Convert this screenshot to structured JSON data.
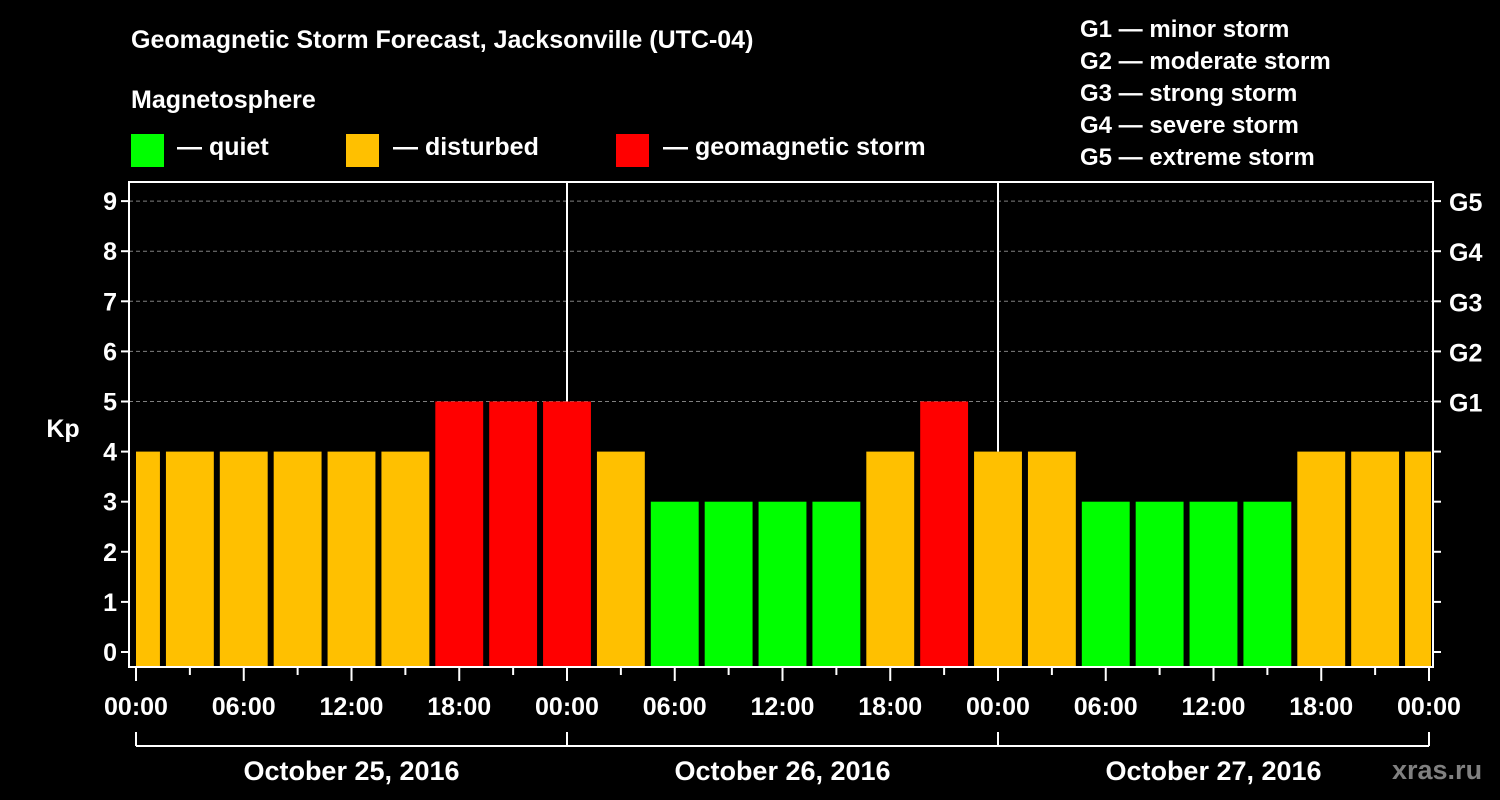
{
  "header": {
    "title": "Geomagnetic Storm Forecast, Jacksonville (UTC-04)",
    "section": "Magnetosphere",
    "legend": [
      {
        "label": "— quiet",
        "color": "#00ff00"
      },
      {
        "label": "— disturbed",
        "color": "#ffc000"
      },
      {
        "label": "— geomagnetic storm",
        "color": "#ff0000"
      }
    ],
    "g_scale": [
      "G1 — minor storm",
      "G2 — moderate storm",
      "G3 — strong storm",
      "G4 — severe storm",
      "G5 — extreme storm"
    ]
  },
  "watermark": "xras.ru",
  "chart_data": {
    "type": "bar",
    "title": "Geomagnetic Storm Forecast, Jacksonville (UTC-04)",
    "ylabel": "Kp",
    "ylim": [
      0,
      9
    ],
    "yticks": [
      "0",
      "1",
      "2",
      "3",
      "4",
      "5",
      "6",
      "7",
      "8",
      "9"
    ],
    "right_ticks": [
      {
        "kp": 5,
        "label": "G1"
      },
      {
        "kp": 6,
        "label": "G2"
      },
      {
        "kp": 7,
        "label": "G3"
      },
      {
        "kp": 8,
        "label": "G4"
      },
      {
        "kp": 9,
        "label": "G5"
      }
    ],
    "grid": "dashed horizontal at Kp 5-9",
    "x_unit": "hours since October 25, 2016 00:00",
    "xlim": [
      0,
      72
    ],
    "xtick_labels": [
      "00:00",
      "06:00",
      "12:00",
      "18:00",
      "00:00",
      "06:00",
      "12:00",
      "18:00",
      "00:00",
      "06:00",
      "12:00",
      "18:00",
      "00:00"
    ],
    "day_labels": [
      "October 25, 2016",
      "October 26, 2016",
      "October 27, 2016"
    ],
    "bar_interval_hours": 3,
    "x": [
      0,
      3,
      6,
      9,
      12,
      15,
      18,
      21,
      24,
      27,
      30,
      33,
      36,
      39,
      42,
      45,
      48,
      51,
      54,
      57,
      60,
      63,
      66,
      69,
      72
    ],
    "values": [
      4,
      4,
      4,
      4,
      4,
      4,
      5,
      5,
      5,
      4,
      3,
      3,
      3,
      3,
      4,
      5,
      4,
      4,
      3,
      3,
      3,
      3,
      4,
      4,
      4
    ],
    "color_rule": {
      "quiet": "Kp<=3 #00ff00",
      "disturbed": "Kp=4 #ffc000",
      "storm": "Kp>=5 #ff0000"
    }
  }
}
